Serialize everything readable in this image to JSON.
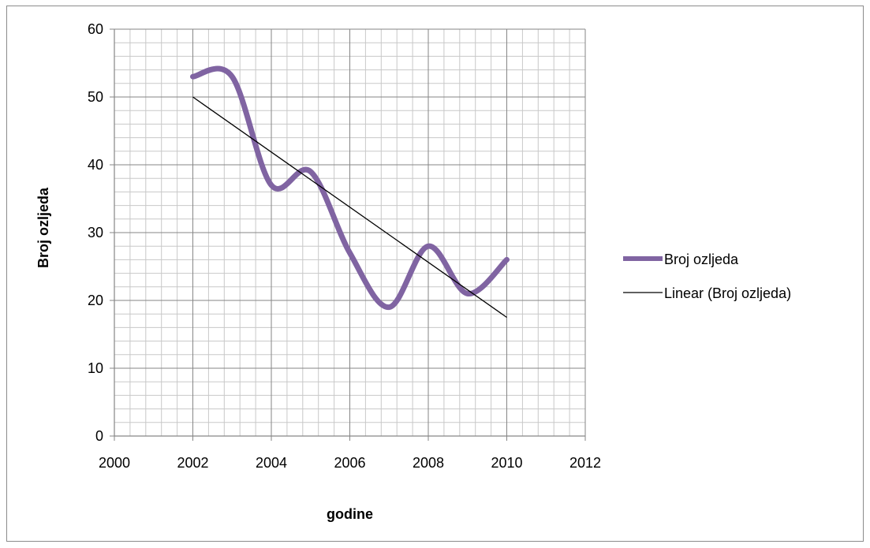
{
  "chart_data": {
    "type": "line",
    "xlabel": "godine",
    "ylabel": "Broj ozljeda",
    "xlim": [
      2000,
      2012
    ],
    "ylim": [
      0,
      60
    ],
    "x_major_ticks": [
      2000,
      2002,
      2004,
      2006,
      2008,
      2010,
      2012
    ],
    "y_major_ticks": [
      0,
      10,
      20,
      30,
      40,
      50,
      60
    ],
    "x_minor_step": 0.4,
    "y_minor_step": 2,
    "grid": true,
    "smoothed": true,
    "legend_position": "right",
    "series": [
      {
        "name": "Broj ozljeda",
        "color": "#8064a2",
        "x": [
          2002,
          2003,
          2004,
          2005,
          2006,
          2007,
          2008,
          2009,
          2010
        ],
        "values": [
          53,
          53,
          37,
          39,
          27,
          19,
          28,
          21,
          26
        ]
      },
      {
        "name": "Linear (Broj ozljeda)",
        "color": "#000000",
        "trendline_of": "Broj ozljeda",
        "x": [
          2002,
          2010
        ],
        "values": [
          50,
          17.5
        ]
      }
    ]
  }
}
